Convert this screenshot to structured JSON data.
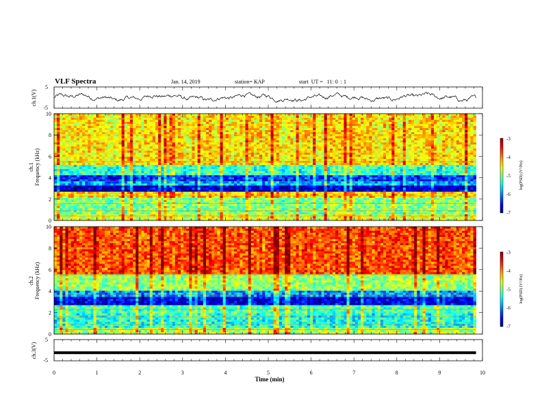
{
  "header": {
    "title": "VLF Spectra",
    "date": "Jan. 14, 2019",
    "station": "station= KAP",
    "start": "start  UT =   11: 0  : 1"
  },
  "chart_data": [
    {
      "type": "line",
      "panel": "ch1-waveform",
      "ylabel": "ch.1(V)",
      "ylim": [
        -5,
        5
      ],
      "yticks": [
        "5",
        "-5"
      ],
      "xlim": [
        0,
        10
      ],
      "series": [
        {
          "description_only": false,
          "values_range": [
            -2.5,
            2.5
          ],
          "color": "#000000"
        }
      ]
    },
    {
      "type": "heatmap",
      "panel": "ch1-spectrogram",
      "ylabel_line1": "ch.1",
      "ylabel_line2": "Frequency (kHz)",
      "ylim": [
        0,
        10
      ],
      "yticks": [
        "0",
        "2",
        "4",
        "6",
        "8",
        "10"
      ],
      "xlim": [
        0,
        9.85
      ],
      "colorbar": {
        "label": "log(PSD) (V²/Hz)",
        "range": [
          -7,
          -3
        ],
        "ticks": [
          "-3",
          "-4",
          "-5",
          "-6",
          "-7"
        ]
      },
      "bands": [
        {
          "f": [
            0,
            0.5
          ],
          "level": -4.6
        },
        {
          "f": [
            0.5,
            2.2
          ],
          "level": -5.0
        },
        {
          "f": [
            2.2,
            2.6
          ],
          "level": -4.3
        },
        {
          "f": [
            2.6,
            3.2
          ],
          "level": -6.7
        },
        {
          "f": [
            3.2,
            3.6
          ],
          "level": -5.8
        },
        {
          "f": [
            3.6,
            4.2
          ],
          "level": -6.3
        },
        {
          "f": [
            4.2,
            5.2
          ],
          "level": -5.3
        },
        {
          "f": [
            5.2,
            10
          ],
          "level": -4.4
        }
      ]
    },
    {
      "type": "heatmap",
      "panel": "ch2-spectrogram",
      "ylabel_line1": "ch.2",
      "ylabel_line2": "Frequency (kHz)",
      "ylim": [
        0,
        10
      ],
      "yticks": [
        "0",
        "2",
        "4",
        "6",
        "8",
        "10"
      ],
      "xlim": [
        0,
        9.85
      ],
      "colorbar": {
        "label": "log(PSD) (V²/Hz)",
        "range": [
          -7,
          -3
        ],
        "ticks": [
          "-3",
          "-4",
          "-5",
          "-6",
          "-7"
        ]
      },
      "bands": [
        {
          "f": [
            0,
            0.6
          ],
          "level": -4.8
        },
        {
          "f": [
            0.6,
            2.0
          ],
          "level": -5.4
        },
        {
          "f": [
            2.0,
            2.6
          ],
          "level": -5.2
        },
        {
          "f": [
            2.6,
            3.4
          ],
          "level": -6.6
        },
        {
          "f": [
            3.4,
            4.0
          ],
          "level": -5.9
        },
        {
          "f": [
            4.0,
            5.5
          ],
          "level": -4.9
        },
        {
          "f": [
            5.5,
            10
          ],
          "level": -3.8
        }
      ]
    },
    {
      "type": "line",
      "panel": "ch3-waveform",
      "ylabel": "ch.3(V)",
      "ylim": [
        -5,
        5
      ],
      "yticks": [
        "5",
        "-5"
      ],
      "xlim": [
        0,
        10
      ],
      "series": [
        {
          "constant": -1.2,
          "x_end": 9.85,
          "color": "#000000"
        }
      ]
    }
  ],
  "xaxis": {
    "label": "Time (min)",
    "ticks": [
      "0",
      "1",
      "2",
      "3",
      "4",
      "5",
      "6",
      "7",
      "8",
      "9",
      "10"
    ]
  }
}
